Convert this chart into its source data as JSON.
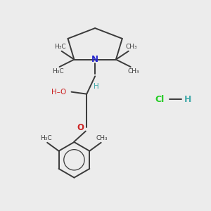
{
  "background_color": "#ececec",
  "bond_color": "#3a3a3a",
  "N_color": "#2222cc",
  "O_color": "#cc2222",
  "Cl_color": "#22cc22",
  "H_color": "#44aaaa",
  "bond_width": 1.4,
  "figsize": [
    3.0,
    3.0
  ],
  "dpi": 100,
  "xlim": [
    0,
    10
  ],
  "ylim": [
    0,
    10
  ]
}
